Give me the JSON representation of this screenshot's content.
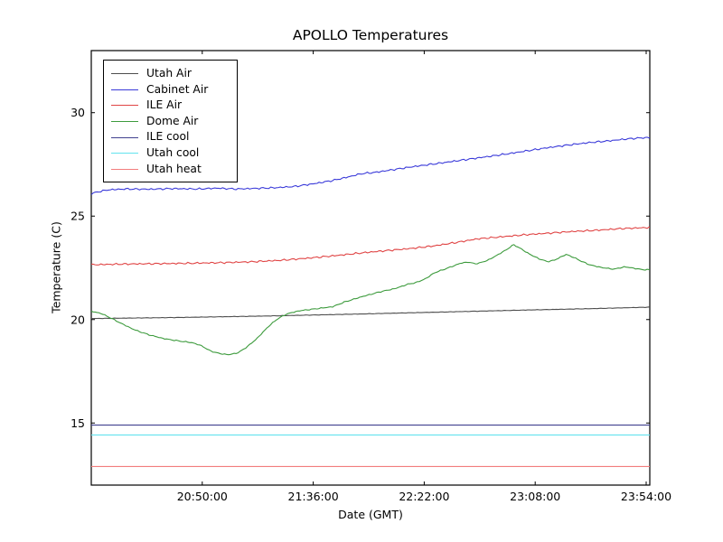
{
  "chart_data": {
    "type": "line",
    "title": "APOLLO Temperatures",
    "xlabel": "Date (GMT)",
    "ylabel": "Temperature (C)",
    "grid": false,
    "legend_position": "upper left",
    "background_color": "#ffffff",
    "axis_color": "#000000",
    "x_unit": "minutes_after_midnight_GMT",
    "xlim_minutes": [
      1204,
      1435.5
    ],
    "ylim": [
      12,
      33
    ],
    "xticks": {
      "values": [
        1250,
        1296,
        1342,
        1388,
        1434
      ],
      "labels": [
        "20:50:00",
        "21:36:00",
        "22:22:00",
        "23:08:00",
        "23:54:00"
      ]
    },
    "yticks": {
      "values": [
        15,
        20,
        25,
        30
      ],
      "labels": [
        "15",
        "20",
        "25",
        "30"
      ]
    },
    "series": [
      {
        "name": "Utah Air",
        "color": "#4d4d4d",
        "jitter": 0.012,
        "points": [
          [
            1204,
            20.05
          ],
          [
            1240,
            20.1
          ],
          [
            1276,
            20.17
          ],
          [
            1312,
            20.26
          ],
          [
            1348,
            20.36
          ],
          [
            1384,
            20.46
          ],
          [
            1412,
            20.53
          ],
          [
            1435.5,
            20.6
          ]
        ]
      },
      {
        "name": "Cabinet Air",
        "color": "#3a3ad9",
        "jitter": 0.05,
        "points": [
          [
            1204,
            26.08
          ],
          [
            1207,
            26.18
          ],
          [
            1211,
            26.27
          ],
          [
            1218,
            26.31
          ],
          [
            1228,
            26.3
          ],
          [
            1238,
            26.33
          ],
          [
            1248,
            26.31
          ],
          [
            1256,
            26.35
          ],
          [
            1264,
            26.31
          ],
          [
            1272,
            26.34
          ],
          [
            1280,
            26.37
          ],
          [
            1288,
            26.43
          ],
          [
            1296,
            26.56
          ],
          [
            1304,
            26.72
          ],
          [
            1310,
            26.88
          ],
          [
            1316,
            27.05
          ],
          [
            1322,
            27.12
          ],
          [
            1330,
            27.26
          ],
          [
            1338,
            27.4
          ],
          [
            1346,
            27.52
          ],
          [
            1356,
            27.68
          ],
          [
            1366,
            27.84
          ],
          [
            1376,
            28.0
          ],
          [
            1386,
            28.18
          ],
          [
            1394,
            28.32
          ],
          [
            1402,
            28.44
          ],
          [
            1410,
            28.55
          ],
          [
            1418,
            28.63
          ],
          [
            1426,
            28.73
          ],
          [
            1432,
            28.78
          ],
          [
            1435.5,
            28.8
          ]
        ]
      },
      {
        "name": "ILE Air",
        "color": "#e04545",
        "jitter": 0.05,
        "points": [
          [
            1204,
            22.65
          ],
          [
            1216,
            22.68
          ],
          [
            1230,
            22.7
          ],
          [
            1244,
            22.72
          ],
          [
            1258,
            22.75
          ],
          [
            1270,
            22.79
          ],
          [
            1282,
            22.86
          ],
          [
            1294,
            22.97
          ],
          [
            1306,
            23.1
          ],
          [
            1316,
            23.22
          ],
          [
            1326,
            23.33
          ],
          [
            1336,
            23.43
          ],
          [
            1346,
            23.56
          ],
          [
            1356,
            23.74
          ],
          [
            1364,
            23.9
          ],
          [
            1374,
            24.0
          ],
          [
            1384,
            24.1
          ],
          [
            1394,
            24.18
          ],
          [
            1404,
            24.26
          ],
          [
            1414,
            24.32
          ],
          [
            1424,
            24.4
          ],
          [
            1435.5,
            24.45
          ]
        ]
      },
      {
        "name": "Dome Air",
        "color": "#3d9b3d",
        "jitter": 0.03,
        "points": [
          [
            1204,
            20.4
          ],
          [
            1208,
            20.3
          ],
          [
            1212,
            20.08
          ],
          [
            1217,
            19.78
          ],
          [
            1222,
            19.5
          ],
          [
            1228,
            19.26
          ],
          [
            1234,
            19.08
          ],
          [
            1240,
            18.97
          ],
          [
            1246,
            18.88
          ],
          [
            1250,
            18.72
          ],
          [
            1253,
            18.5
          ],
          [
            1257,
            18.36
          ],
          [
            1261,
            18.3
          ],
          [
            1265,
            18.4
          ],
          [
            1269,
            18.72
          ],
          [
            1273,
            19.12
          ],
          [
            1277,
            19.62
          ],
          [
            1281,
            20.02
          ],
          [
            1285,
            20.27
          ],
          [
            1290,
            20.42
          ],
          [
            1297,
            20.52
          ],
          [
            1304,
            20.62
          ],
          [
            1309,
            20.85
          ],
          [
            1316,
            21.1
          ],
          [
            1324,
            21.35
          ],
          [
            1330,
            21.5
          ],
          [
            1335,
            21.7
          ],
          [
            1339,
            21.8
          ],
          [
            1343,
            22.0
          ],
          [
            1346,
            22.25
          ],
          [
            1352,
            22.5
          ],
          [
            1357,
            22.72
          ],
          [
            1360,
            22.78
          ],
          [
            1363,
            22.7
          ],
          [
            1365,
            22.73
          ],
          [
            1369,
            22.9
          ],
          [
            1372,
            23.1
          ],
          [
            1375,
            23.3
          ],
          [
            1377,
            23.45
          ],
          [
            1379,
            23.62
          ],
          [
            1381,
            23.5
          ],
          [
            1384,
            23.28
          ],
          [
            1387,
            23.08
          ],
          [
            1390,
            22.92
          ],
          [
            1393,
            22.8
          ],
          [
            1396,
            22.87
          ],
          [
            1399,
            23.05
          ],
          [
            1401,
            23.15
          ],
          [
            1404,
            23.0
          ],
          [
            1407,
            22.83
          ],
          [
            1410,
            22.67
          ],
          [
            1414,
            22.55
          ],
          [
            1418,
            22.47
          ],
          [
            1421,
            22.44
          ],
          [
            1425,
            22.55
          ],
          [
            1428,
            22.5
          ],
          [
            1432,
            22.42
          ],
          [
            1435.5,
            22.4
          ]
        ]
      },
      {
        "name": "ILE cool",
        "color": "#41418f",
        "jitter": 0,
        "points": [
          [
            1204,
            14.9
          ],
          [
            1435.5,
            14.9
          ]
        ]
      },
      {
        "name": "Utah cool",
        "color": "#63e3ee",
        "jitter": 0,
        "points": [
          [
            1204,
            14.42
          ],
          [
            1435.5,
            14.42
          ]
        ]
      },
      {
        "name": "Utah heat",
        "color": "#f27d7d",
        "jitter": 0,
        "points": [
          [
            1204,
            12.9
          ],
          [
            1435.5,
            12.9
          ]
        ]
      }
    ]
  }
}
